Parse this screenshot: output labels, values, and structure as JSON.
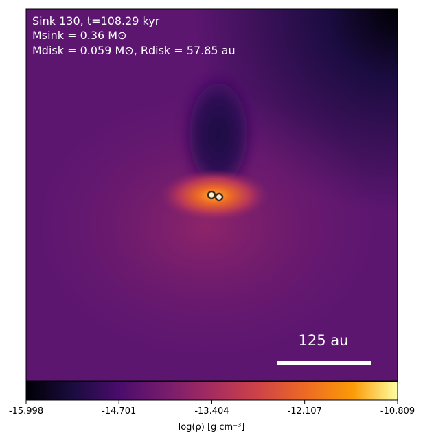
{
  "chart_data": {
    "type": "image",
    "annotations": [
      "Sink 130, t=108.29 kyr",
      "Msink = 0.36 M⊙",
      "Mdisk = 0.059 M⊙, Rdisk = 57.85 au"
    ],
    "scale_bar_label": "125 au",
    "colorbar": {
      "label": "log(ρ) [g cm⁻³]",
      "xlim": [
        -15.998,
        -10.809
      ],
      "xticks": [
        -15.998,
        -14.701,
        -13.404,
        -12.107,
        -10.809
      ],
      "colormap": "inferno"
    }
  }
}
